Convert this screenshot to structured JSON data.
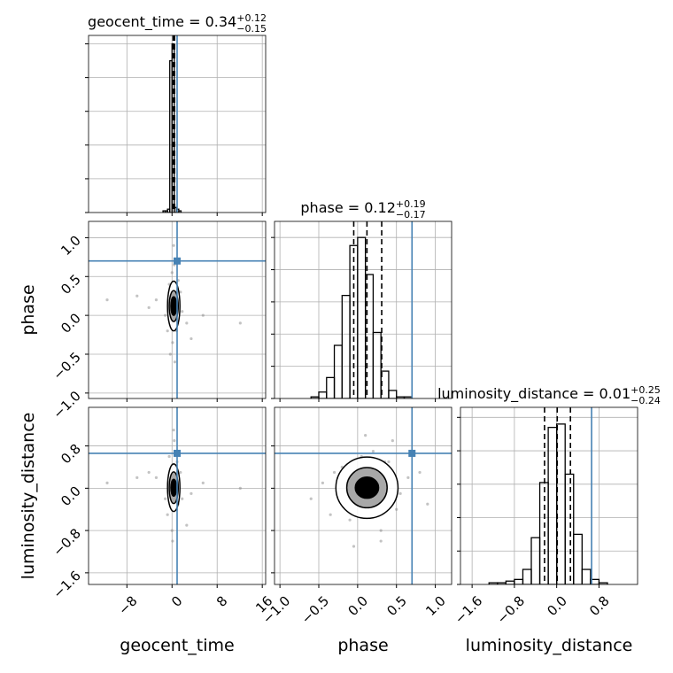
{
  "chart_data": [
    {
      "type": "histogram",
      "title": "geocent_time = 0.34",
      "title_sup": "+0.12",
      "title_sub": "−0.15",
      "bins": [
        -1.6,
        -1.2,
        -0.8,
        -0.4,
        0,
        0.4,
        0.8,
        1.2,
        1.6
      ],
      "counts": [
        1,
        1,
        2,
        90,
        100,
        3,
        2,
        1
      ],
      "quantiles": [
        0.19,
        0.34,
        0.46
      ],
      "truth": 0.9,
      "truth_color": "#4682b4",
      "color": "#000000",
      "xlim": [
        -14.8,
        16.6
      ],
      "xticks": [
        {
          "value": -8,
          "label": "−8"
        },
        0,
        8,
        16
      ],
      "xtick_labels": false,
      "ylim": [
        0,
        105
      ],
      "yticks": [
        0,
        20,
        40,
        60,
        80,
        100
      ],
      "ytick_labels": false,
      "grid": true
    },
    {
      "type": "scatter",
      "ylabel": "phase",
      "x": [
        0.2,
        -0.5,
        0.8,
        1.5,
        -1.2,
        0.4,
        2.6,
        -2.8,
        0.1,
        0.6,
        -0.3,
        1.1,
        5.5,
        -6.2,
        0.3,
        -0.8,
        0.9,
        3.4,
        -4.1,
        12.1,
        -11.5,
        0.0,
        0.5,
        1.8
      ],
      "y": [
        0.1,
        0.4,
        -0.2,
        0.3,
        0.0,
        0.65,
        -0.1,
        0.2,
        -0.35,
        0.15,
        -0.5,
        0.45,
        0.0,
        0.25,
        0.9,
        -0.2,
        0.3,
        -0.3,
        0.1,
        -0.1,
        0.2,
        0.55,
        -0.6,
        0.05
      ],
      "color": "#888888",
      "contour_center": [
        0.3,
        0.12
      ],
      "contours": [
        [
          1.1,
          0.32
        ],
        [
          0.8,
          0.2
        ],
        [
          0.5,
          0.12
        ]
      ],
      "truth_x": 0.9,
      "truth_y": 0.7,
      "truth_color": "#4682b4",
      "xlim": [
        -14.8,
        16.6
      ],
      "xticks": [
        {
          "value": -8,
          "label": "−8"
        },
        0,
        8,
        16
      ],
      "xtick_labels": false,
      "ylim": [
        -1.07,
        1.21
      ],
      "yticks": [
        {
          "value": -1,
          "label": "−1.0"
        },
        {
          "value": -0.5,
          "label": "−0.5"
        },
        {
          "value": 0,
          "label": "0.0"
        },
        0.5,
        {
          "value": 1,
          "label": "1.0"
        }
      ],
      "ytick_labels": true,
      "grid": true
    },
    {
      "type": "histogram",
      "title": "phase = 0.12",
      "title_sup": "+0.19",
      "title_sub": "−0.17",
      "bins": [
        -0.7,
        -0.6,
        -0.5,
        -0.4,
        -0.3,
        -0.2,
        -0.1,
        0,
        0.1,
        0.2,
        0.3,
        0.4,
        0.5,
        0.6,
        0.7,
        0.8,
        0.9
      ],
      "counts": [
        0,
        1,
        4,
        13,
        33,
        64,
        95,
        100,
        77,
        41,
        17,
        5,
        1,
        1,
        0,
        0
      ],
      "quantiles": [
        -0.05,
        0.12,
        0.31
      ],
      "truth": 0.7,
      "truth_color": "#4682b4",
      "color": "#000000",
      "xlim": [
        -1.07,
        1.21
      ],
      "xticks": [
        {
          "value": -1,
          "label": "−1.0"
        },
        {
          "value": -0.5,
          "label": "−0.5"
        },
        {
          "value": 0,
          "label": "0.0"
        },
        0.5,
        {
          "value": 1,
          "label": "1.0"
        }
      ],
      "xtick_labels": false,
      "ylim": [
        0,
        110
      ],
      "yticks": [
        0,
        20,
        40,
        60,
        80,
        100
      ],
      "ytick_labels": false,
      "grid": true
    },
    {
      "type": "scatter",
      "xlabel": "geocent_time",
      "ylabel": "luminosity_distance",
      "x": [
        0.2,
        -0.5,
        0.8,
        1.5,
        -1.2,
        0.4,
        2.6,
        -2.8,
        0.1,
        0.6,
        -0.3,
        1.1,
        5.5,
        -6.2,
        0.3,
        -0.8,
        0.9,
        3.4,
        -4.1,
        12.1,
        -11.5,
        0.0,
        0.5,
        1.8
      ],
      "y": [
        0.0,
        0.6,
        -0.4,
        0.3,
        -0.2,
        0.9,
        -0.7,
        0.2,
        -1.0,
        0.4,
        0.1,
        -0.3,
        0.1,
        0.2,
        1.1,
        -0.5,
        0.5,
        -0.1,
        0.3,
        0.0,
        0.1,
        -0.8,
        0.7,
        -0.2
      ],
      "color": "#888888",
      "contour_center": [
        0.3,
        0.01
      ],
      "contours": [
        [
          1.1,
          0.45
        ],
        [
          0.8,
          0.3
        ],
        [
          0.5,
          0.16
        ]
      ],
      "truth_x": 0.9,
      "truth_y": 0.66,
      "truth_color": "#4682b4",
      "xlim": [
        -14.8,
        16.6
      ],
      "xticks": [
        {
          "value": -8,
          "label": "−8"
        },
        0,
        8,
        16
      ],
      "xtick_labels": true,
      "ylim": [
        -1.82,
        1.53
      ],
      "yticks": [
        {
          "value": -1.6,
          "label": "−1.6"
        },
        {
          "value": -0.8,
          "label": "−0.8"
        },
        {
          "value": 0,
          "label": "0.0"
        },
        0.8
      ],
      "ytick_labels": true,
      "grid": true
    },
    {
      "type": "scatter",
      "xlabel": "phase",
      "x": [
        0.12,
        -0.3,
        0.5,
        0.2,
        -0.1,
        0.4,
        0.0,
        0.3,
        -0.45,
        0.65,
        0.1,
        -0.2,
        0.35,
        0.25,
        -0.05,
        0.55,
        0.15,
        -0.6,
        0.8,
        0.05,
        0.45,
        -0.35,
        0.3,
        0.9
      ],
      "y": [
        0.0,
        0.3,
        -0.4,
        0.7,
        -0.6,
        0.5,
        -0.2,
        -0.8,
        0.1,
        0.2,
        1.0,
        0.4,
        0.5,
        -0.3,
        -1.1,
        -0.1,
        0.25,
        -0.2,
        0.3,
        0.6,
        0.9,
        -0.5,
        -1.0,
        -0.3
      ],
      "color": "#888888",
      "contour_center": [
        0.12,
        0.01
      ],
      "contours": [
        [
          0.4,
          0.58
        ],
        [
          0.26,
          0.38
        ],
        [
          0.15,
          0.2
        ]
      ],
      "truth_x": 0.7,
      "truth_y": 0.66,
      "truth_color": "#4682b4",
      "xlim": [
        -1.07,
        1.21
      ],
      "xticks": [
        {
          "value": -1,
          "label": "−1.0"
        },
        {
          "value": -0.5,
          "label": "−0.5"
        },
        {
          "value": 0,
          "label": "0.0"
        },
        0.5,
        {
          "value": 1,
          "label": "1.0"
        }
      ],
      "xtick_labels": true,
      "ylim": [
        -1.82,
        1.53
      ],
      "yticks": [
        {
          "value": -1.6,
          "label": "−1.6"
        },
        {
          "value": -0.8,
          "label": "−0.8"
        },
        {
          "value": 0,
          "label": "0.0"
        },
        0.8
      ],
      "ytick_labels": false,
      "grid": true
    },
    {
      "type": "histogram",
      "title": "luminosity_distance = 0.01",
      "title_sup": "+0.25",
      "title_sub": "−0.24",
      "xlabel": "luminosity_distance",
      "bins": [
        -1.44,
        -1.28,
        -1.12,
        -0.96,
        -0.8,
        -0.64,
        -0.48,
        -0.32,
        -0.16,
        0,
        0.16,
        0.32,
        0.48,
        0.64,
        0.8,
        0.96
      ],
      "counts": [
        0,
        1,
        1,
        2,
        3,
        9,
        28,
        61,
        94,
        96,
        66,
        30,
        9,
        3,
        1
      ],
      "quantiles": [
        -0.23,
        0.01,
        0.26
      ],
      "truth": 0.66,
      "truth_color": "#4682b4",
      "color": "#000000",
      "xlim": [
        -1.82,
        1.53
      ],
      "xticks": [
        {
          "value": -1.6,
          "label": "−1.6"
        },
        {
          "value": -0.8,
          "label": "−0.8"
        },
        {
          "value": 0,
          "label": "0.0"
        },
        0.8
      ],
      "xtick_labels": true,
      "ylim": [
        0,
        106
      ],
      "yticks": [
        0,
        20,
        40,
        60,
        80,
        100
      ],
      "ytick_labels": false,
      "grid": true
    }
  ]
}
